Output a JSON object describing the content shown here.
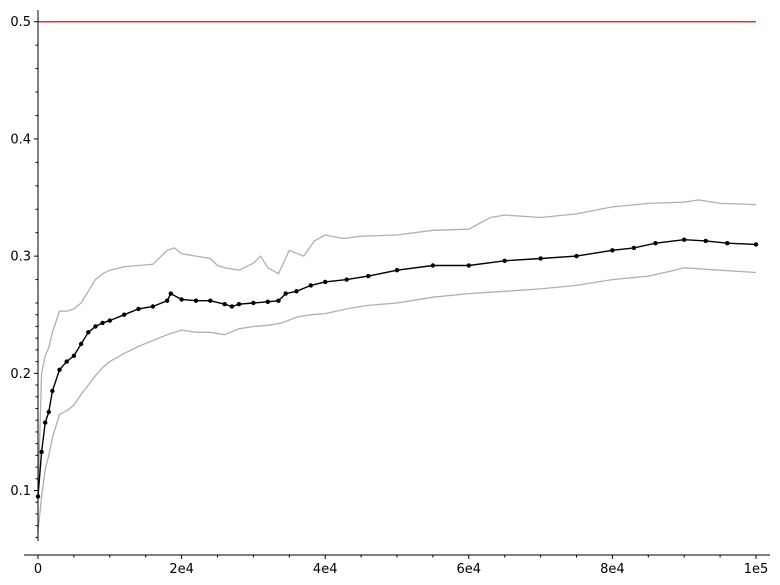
{
  "chart_data": {
    "type": "line",
    "title": "",
    "xlabel": "",
    "ylabel": "",
    "xlim": [
      0,
      100000
    ],
    "ylim": [
      0.05,
      0.51
    ],
    "grid": false,
    "x_ticks": [
      {
        "value": 0,
        "label": "0"
      },
      {
        "value": 20000,
        "label": "2e4"
      },
      {
        "value": 40000,
        "label": "4e4"
      },
      {
        "value": 60000,
        "label": "6e4"
      },
      {
        "value": 80000,
        "label": "8e4"
      },
      {
        "value": 100000,
        "label": "1e5"
      }
    ],
    "y_ticks": [
      {
        "value": 0.1,
        "label": "0.1"
      },
      {
        "value": 0.2,
        "label": "0.2"
      },
      {
        "value": 0.3,
        "label": "0.3"
      },
      {
        "value": 0.4,
        "label": "0.4"
      },
      {
        "value": 0.5,
        "label": "0.5"
      }
    ],
    "reference_line": {
      "y": 0.5,
      "color": "#ff0000"
    },
    "series": [
      {
        "role": "mean",
        "color": "#000000",
        "markers": true,
        "x": [
          0,
          500,
          1000,
          1500,
          2000,
          3000,
          4000,
          5000,
          6000,
          7000,
          8000,
          9000,
          10000,
          12000,
          14000,
          16000,
          18000,
          18500,
          20000,
          22000,
          24000,
          26000,
          27000,
          28000,
          30000,
          32000,
          33500,
          34500,
          36000,
          38000,
          40000,
          43000,
          46000,
          50000,
          55000,
          60000,
          65000,
          70000,
          75000,
          80000,
          83000,
          86000,
          90000,
          93000,
          96000,
          100000
        ],
        "y": [
          0.095,
          0.133,
          0.158,
          0.167,
          0.185,
          0.203,
          0.21,
          0.215,
          0.225,
          0.235,
          0.24,
          0.243,
          0.245,
          0.25,
          0.255,
          0.257,
          0.262,
          0.268,
          0.263,
          0.262,
          0.262,
          0.259,
          0.257,
          0.259,
          0.26,
          0.261,
          0.262,
          0.268,
          0.27,
          0.275,
          0.278,
          0.28,
          0.283,
          0.288,
          0.292,
          0.292,
          0.296,
          0.298,
          0.3,
          0.305,
          0.307,
          0.311,
          0.314,
          0.313,
          0.311,
          0.31
        ]
      },
      {
        "role": "upper-band",
        "color": "#b0b0b0",
        "markers": false,
        "x": [
          0,
          500,
          1000,
          1500,
          2000,
          3000,
          4000,
          5000,
          6000,
          7000,
          8000,
          9000,
          10000,
          12000,
          14000,
          16000,
          18000,
          19000,
          20000,
          22000,
          24000,
          25000,
          26000,
          28000,
          30000,
          31000,
          32000,
          33500,
          35000,
          37000,
          38500,
          40000,
          42500,
          45000,
          50000,
          55000,
          60000,
          63000,
          65000,
          70000,
          75000,
          80000,
          85000,
          90000,
          92000,
          95000,
          100000
        ],
        "y": [
          0.095,
          0.2,
          0.215,
          0.222,
          0.235,
          0.253,
          0.253,
          0.255,
          0.26,
          0.27,
          0.28,
          0.285,
          0.288,
          0.291,
          0.292,
          0.293,
          0.305,
          0.307,
          0.302,
          0.3,
          0.298,
          0.292,
          0.29,
          0.288,
          0.294,
          0.3,
          0.29,
          0.285,
          0.305,
          0.3,
          0.313,
          0.318,
          0.315,
          0.317,
          0.318,
          0.322,
          0.323,
          0.333,
          0.335,
          0.333,
          0.336,
          0.342,
          0.345,
          0.346,
          0.348,
          0.345,
          0.344
        ]
      },
      {
        "role": "lower-band",
        "color": "#b0b0b0",
        "markers": false,
        "x": [
          0,
          500,
          1000,
          1500,
          2000,
          3000,
          4000,
          5000,
          6000,
          7000,
          8000,
          9000,
          10000,
          12000,
          14000,
          16000,
          18000,
          20000,
          22000,
          24000,
          26000,
          28000,
          30000,
          32000,
          34000,
          36000,
          38000,
          40000,
          43000,
          46000,
          50000,
          55000,
          60000,
          65000,
          70000,
          75000,
          80000,
          85000,
          88000,
          90000,
          95000,
          100000
        ],
        "y": [
          0.065,
          0.095,
          0.118,
          0.13,
          0.145,
          0.165,
          0.168,
          0.173,
          0.182,
          0.19,
          0.198,
          0.205,
          0.21,
          0.217,
          0.223,
          0.228,
          0.233,
          0.237,
          0.235,
          0.235,
          0.233,
          0.238,
          0.24,
          0.241,
          0.243,
          0.248,
          0.25,
          0.251,
          0.255,
          0.258,
          0.26,
          0.265,
          0.268,
          0.27,
          0.272,
          0.275,
          0.28,
          0.283,
          0.287,
          0.29,
          0.288,
          0.286
        ]
      }
    ]
  }
}
